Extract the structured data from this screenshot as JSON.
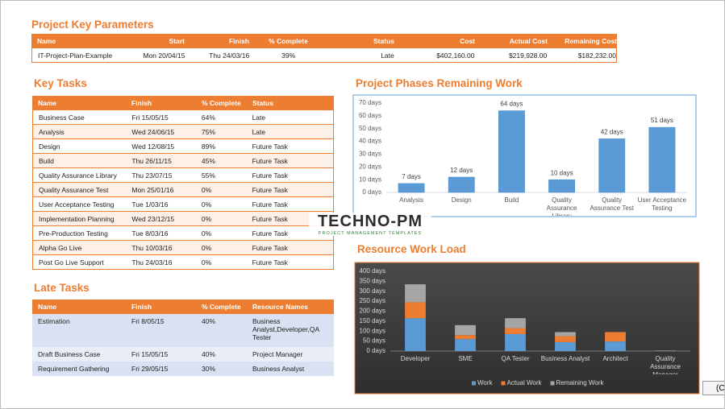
{
  "key_parameters": {
    "title": "Project Key Parameters",
    "headers": [
      "Name",
      "Start",
      "Finish",
      "% Complete",
      "Status",
      "Cost",
      "Actual Cost",
      "Remaining Cost"
    ],
    "rows": [
      [
        "IT-Project-Plan-Example",
        "Mon 20/04/15",
        "Thu 24/03/16",
        "39%",
        "Late",
        "$402,160.00",
        "$219,928.00",
        "$182,232.00"
      ]
    ]
  },
  "key_tasks": {
    "title": "Key Tasks",
    "headers": [
      "Name",
      "Finish",
      "% Complete",
      "Status"
    ],
    "rows": [
      [
        "Business Case",
        "Fri 15/05/15",
        "64%",
        "Late"
      ],
      [
        "Analysis",
        "Wed 24/06/15",
        "75%",
        "Late"
      ],
      [
        "Design",
        "Wed 12/08/15",
        "89%",
        "Future Task"
      ],
      [
        "Build",
        "Thu 26/11/15",
        "45%",
        "Future Task"
      ],
      [
        "Quality Assurance Library",
        "Thu 23/07/15",
        "55%",
        "Future Task"
      ],
      [
        "Quality Assurance Test",
        "Mon 25/01/16",
        "0%",
        "Future Task"
      ],
      [
        "User Acceptance Testing",
        "Tue 1/03/16",
        "0%",
        "Future Task"
      ],
      [
        "Implementation Planning",
        "Wed 23/12/15",
        "0%",
        "Future Task"
      ],
      [
        "Pre-Production Testing",
        "Tue 8/03/16",
        "0%",
        "Future Task"
      ],
      [
        "Alpha Go Live",
        "Thu 10/03/16",
        "0%",
        "Future Task"
      ],
      [
        "Post Go Live Support",
        "Thu 24/03/16",
        "0%",
        "Future Task"
      ]
    ]
  },
  "late_tasks": {
    "title": "Late Tasks",
    "headers": [
      "Name",
      "Finish",
      "% Complete",
      "Resource Names"
    ],
    "rows": [
      [
        "Estimation",
        "Fri 8/05/15",
        "40%",
        "Business Analyst,Developer,QA Tester"
      ],
      [
        "Draft Business Case",
        "Fri 15/05/15",
        "40%",
        "Project Manager"
      ],
      [
        "Requirement Gathering",
        "Fri 29/05/15",
        "30%",
        "Business Analyst"
      ]
    ]
  },
  "watermark": {
    "brand": "TECHNO-PM",
    "tagline": "PROJECT MANAGEMENT TEMPLATES"
  },
  "paste_button": "(C",
  "chart_data": [
    {
      "type": "bar",
      "title": "Project Phases Remaining Work",
      "categories": [
        "Analysis",
        "Design",
        "Build",
        "Quality Assurance Library",
        "Quality Assurance Test",
        "User Acceptance Testing"
      ],
      "values": [
        7,
        12,
        64,
        10,
        42,
        51
      ],
      "value_labels": [
        "7 days",
        "12 days",
        "64 days",
        "10 days",
        "42 days",
        "51 days"
      ],
      "color": "#5b9bd5",
      "ylim": [
        0,
        70
      ],
      "yticks": [
        {
          "value": 0,
          "label": "0 days"
        },
        {
          "value": 10,
          "label": "10 days"
        },
        {
          "value": 20,
          "label": "20 days"
        },
        {
          "value": 30,
          "label": "30 days"
        },
        {
          "value": 40,
          "label": "40 days"
        },
        {
          "value": 50,
          "label": "50 days"
        },
        {
          "value": 60,
          "label": "60 days"
        },
        {
          "value": 70,
          "label": "70 days"
        }
      ]
    },
    {
      "type": "stacked_bar",
      "title": "Resource Work Load",
      "categories": [
        "Developer",
        "SME",
        "QA Tester",
        "Business Analyst",
        "Architect",
        "Quality Assurance Manager"
      ],
      "series": [
        {
          "name": "Work",
          "color": "#5b9bd5",
          "values": [
            165,
            60,
            85,
            45,
            48,
            2
          ]
        },
        {
          "name": "Actual Work",
          "color": "#ed7d31",
          "values": [
            80,
            20,
            30,
            30,
            47,
            1
          ]
        },
        {
          "name": "Remaining Work",
          "color": "#a5a5a5",
          "values": [
            90,
            50,
            50,
            20,
            0,
            0
          ]
        }
      ],
      "ylim": [
        0,
        400
      ],
      "yticks": [
        {
          "value": 0,
          "label": "0 days"
        },
        {
          "value": 50,
          "label": "50 days"
        },
        {
          "value": 100,
          "label": "100 days"
        },
        {
          "value": 150,
          "label": "150 days"
        },
        {
          "value": 200,
          "label": "200 days"
        },
        {
          "value": 250,
          "label": "250 days"
        },
        {
          "value": 300,
          "label": "300 days"
        },
        {
          "value": 350,
          "label": "350 days"
        },
        {
          "value": 400,
          "label": "400 days"
        }
      ],
      "legend": "bottom"
    }
  ]
}
